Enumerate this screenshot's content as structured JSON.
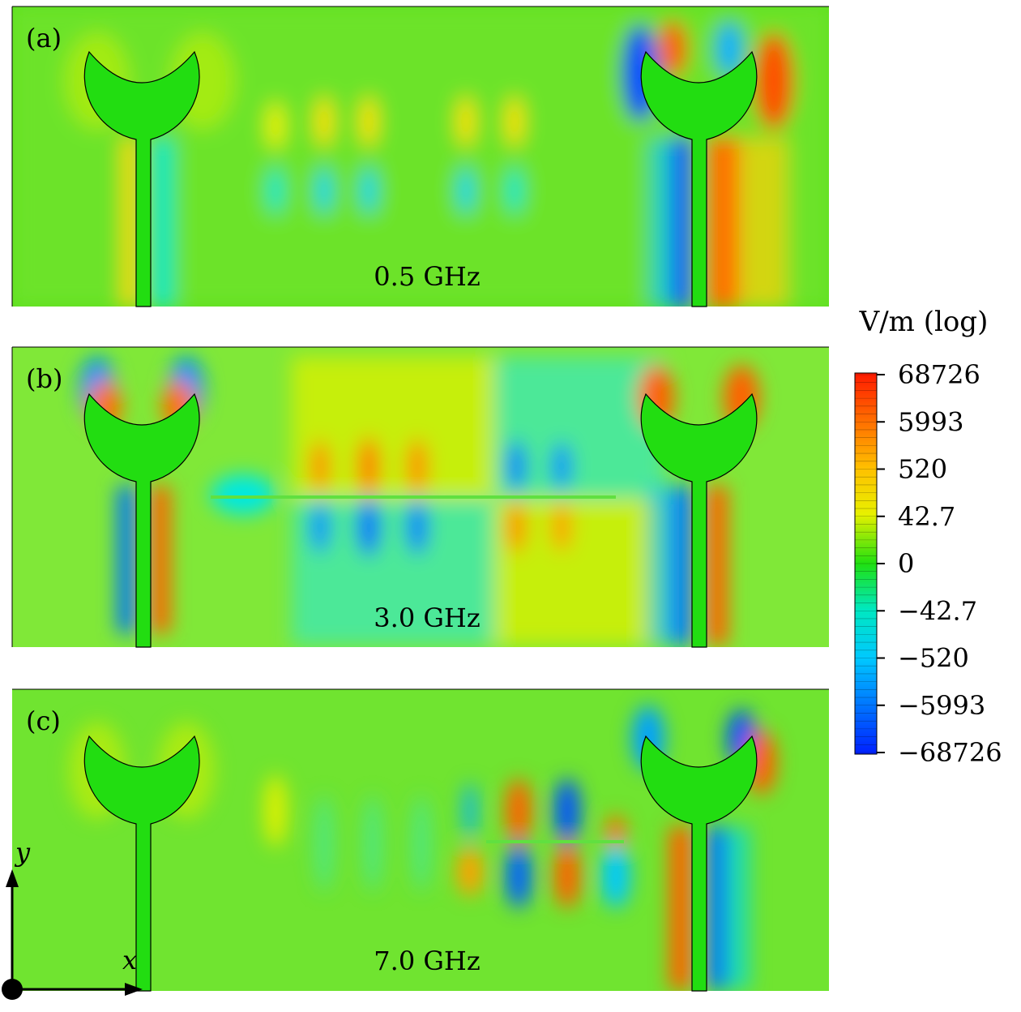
{
  "panels": [
    {
      "label": "(a)",
      "freq": "0.5 GHz"
    },
    {
      "label": "(b)",
      "freq": "3.0 GHz"
    },
    {
      "label": "(c)",
      "freq": "7.0 GHz"
    }
  ],
  "colorbar": {
    "unit": "V/m (log)",
    "ticks": [
      "68726",
      "5993",
      "520",
      "42.7",
      "0",
      "−42.7",
      "−520",
      "−5993",
      "−68726"
    ],
    "colors": [
      "#ff1a00",
      "#ff6a00",
      "#ffb000",
      "#ffe000",
      "#c8f000",
      "#50e000",
      "#00e060",
      "#00e8c8",
      "#00c8ff",
      "#0080ff",
      "#0030ff"
    ]
  },
  "axes": {
    "y_label": "y",
    "x_label": "x"
  }
}
